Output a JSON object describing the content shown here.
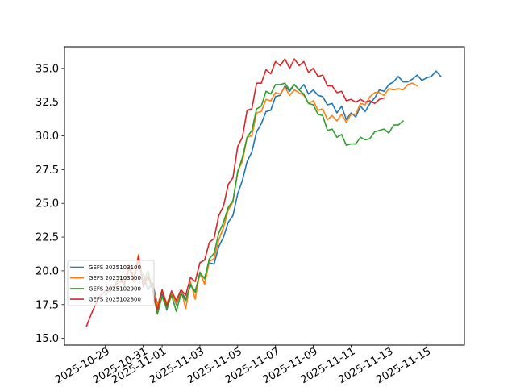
{
  "chart_data": {
    "type": "line",
    "title": "",
    "xlabel": "",
    "ylabel": "",
    "x_range": [
      "2025-10-26T20:00",
      "2025-11-17T00:00"
    ],
    "ylim": [
      14.5,
      36.6
    ],
    "grid": false,
    "legend_position": "lower-left",
    "x_ticks": [
      "2025-10-29",
      "2025-10-31",
      "2025-11-01",
      "2025-11-03",
      "2025-11-05",
      "2025-11-07",
      "2025-11-09",
      "2025-11-11",
      "2025-11-13",
      "2025-11-15"
    ],
    "y_ticks": [
      "15.0",
      "17.5",
      "20.0",
      "22.5",
      "25.0",
      "27.5",
      "30.0",
      "32.5",
      "35.0"
    ],
    "series": [
      {
        "name": "GEFS 2025103100",
        "color": "#1f77b4",
        "points": [
          [
            "2025-10-31T00:00",
            19.8
          ],
          [
            "2025-10-31T06:00",
            18.6
          ],
          [
            "2025-10-31T12:00",
            19.1
          ],
          [
            "2025-10-31T18:00",
            17.5
          ],
          [
            "2025-11-01T00:00",
            18.3
          ],
          [
            "2025-11-01T06:00",
            17.1
          ],
          [
            "2025-11-01T12:00",
            18.5
          ],
          [
            "2025-11-01T18:00",
            17.5
          ],
          [
            "2025-11-02T00:00",
            18.5
          ],
          [
            "2025-11-02T06:00",
            17.9
          ],
          [
            "2025-11-02T12:00",
            18.9
          ],
          [
            "2025-11-02T18:00",
            18.5
          ],
          [
            "2025-11-03T00:00",
            19.7
          ],
          [
            "2025-11-03T06:00",
            19.5
          ],
          [
            "2025-11-03T12:00",
            20.6
          ],
          [
            "2025-11-03T18:00",
            20.5
          ],
          [
            "2025-11-04T00:00",
            21.8
          ],
          [
            "2025-11-04T06:00",
            22.5
          ],
          [
            "2025-11-04T12:00",
            23.6
          ],
          [
            "2025-11-04T18:00",
            24.1
          ],
          [
            "2025-11-05T00:00",
            25.7
          ],
          [
            "2025-11-05T06:00",
            26.7
          ],
          [
            "2025-11-05T12:00",
            28.1
          ],
          [
            "2025-11-05T18:00",
            28.8
          ],
          [
            "2025-11-06T00:00",
            30.3
          ],
          [
            "2025-11-06T06:00",
            30.9
          ],
          [
            "2025-11-06T12:00",
            31.8
          ],
          [
            "2025-11-06T18:00",
            31.9
          ],
          [
            "2025-11-07T00:00",
            32.9
          ],
          [
            "2025-11-07T06:00",
            33.0
          ],
          [
            "2025-11-07T12:00",
            33.7
          ],
          [
            "2025-11-07T18:00",
            33.3
          ],
          [
            "2025-11-08T00:00",
            33.8
          ],
          [
            "2025-11-08T06:00",
            33.4
          ],
          [
            "2025-11-08T12:00",
            33.8
          ],
          [
            "2025-11-08T18:00",
            33.1
          ],
          [
            "2025-11-09T00:00",
            33.4
          ],
          [
            "2025-11-09T06:00",
            33.0
          ],
          [
            "2025-11-09T12:00",
            32.9
          ],
          [
            "2025-11-09T18:00",
            32.3
          ],
          [
            "2025-11-10T00:00",
            32.4
          ],
          [
            "2025-11-10T06:00",
            31.7
          ],
          [
            "2025-11-10T12:00",
            32.2
          ],
          [
            "2025-11-10T18:00",
            31.2
          ],
          [
            "2025-11-11T00:00",
            31.7
          ],
          [
            "2025-11-11T06:00",
            31.4
          ],
          [
            "2025-11-11T12:00",
            32.2
          ],
          [
            "2025-11-11T18:00",
            31.8
          ],
          [
            "2025-11-12T00:00",
            32.4
          ],
          [
            "2025-11-12T06:00",
            32.8
          ],
          [
            "2025-11-12T12:00",
            33.4
          ],
          [
            "2025-11-12T18:00",
            33.3
          ],
          [
            "2025-11-13T00:00",
            33.8
          ],
          [
            "2025-11-13T06:00",
            34.0
          ],
          [
            "2025-11-13T12:00",
            34.4
          ],
          [
            "2025-11-13T18:00",
            34.0
          ],
          [
            "2025-11-14T00:00",
            34.0
          ],
          [
            "2025-11-14T06:00",
            34.2
          ],
          [
            "2025-11-14T12:00",
            34.5
          ],
          [
            "2025-11-14T18:00",
            34.1
          ],
          [
            "2025-11-15T00:00",
            34.3
          ],
          [
            "2025-11-15T06:00",
            34.4
          ],
          [
            "2025-11-15T12:00",
            34.8
          ],
          [
            "2025-11-15T18:00",
            34.4
          ]
        ]
      },
      {
        "name": "GEFS 2025103000",
        "color": "#ff7f0e",
        "points": [
          [
            "2025-10-30T00:00",
            19.0
          ],
          [
            "2025-10-30T06:00",
            20.5
          ],
          [
            "2025-10-30T12:00",
            19.5
          ],
          [
            "2025-10-30T18:00",
            21.2
          ],
          [
            "2025-10-31T00:00",
            19.2
          ],
          [
            "2025-10-31T06:00",
            19.6
          ],
          [
            "2025-10-31T12:00",
            18.8
          ],
          [
            "2025-10-31T18:00",
            17.4
          ],
          [
            "2025-11-01T00:00",
            18.6
          ],
          [
            "2025-11-01T06:00",
            17.6
          ],
          [
            "2025-11-01T12:00",
            18.4
          ],
          [
            "2025-11-01T18:00",
            17.6
          ],
          [
            "2025-11-02T00:00",
            18.6
          ],
          [
            "2025-11-02T06:00",
            17.2
          ],
          [
            "2025-11-02T12:00",
            19.2
          ],
          [
            "2025-11-02T18:00",
            17.9
          ],
          [
            "2025-11-03T00:00",
            19.9
          ],
          [
            "2025-11-03T06:00",
            19.0
          ],
          [
            "2025-11-03T12:00",
            20.7
          ],
          [
            "2025-11-03T18:00",
            20.9
          ],
          [
            "2025-11-04T00:00",
            22.3
          ],
          [
            "2025-11-04T06:00",
            23.2
          ],
          [
            "2025-11-04T12:00",
            24.5
          ],
          [
            "2025-11-04T18:00",
            25.1
          ],
          [
            "2025-11-05T00:00",
            27.4
          ],
          [
            "2025-11-05T06:00",
            28.1
          ],
          [
            "2025-11-05T12:00",
            29.9
          ],
          [
            "2025-11-05T18:00",
            30.0
          ],
          [
            "2025-11-06T00:00",
            31.7
          ],
          [
            "2025-11-06T06:00",
            31.8
          ],
          [
            "2025-11-06T12:00",
            32.7
          ],
          [
            "2025-11-06T18:00",
            32.6
          ],
          [
            "2025-11-07T00:00",
            33.2
          ],
          [
            "2025-11-07T06:00",
            33.1
          ],
          [
            "2025-11-07T12:00",
            33.6
          ],
          [
            "2025-11-07T18:00",
            33.0
          ],
          [
            "2025-11-08T00:00",
            33.4
          ],
          [
            "2025-11-08T06:00",
            33.2
          ],
          [
            "2025-11-08T12:00",
            33.0
          ],
          [
            "2025-11-08T18:00",
            32.4
          ],
          [
            "2025-11-09T00:00",
            32.6
          ],
          [
            "2025-11-09T06:00",
            31.9
          ],
          [
            "2025-11-09T12:00",
            32.0
          ],
          [
            "2025-11-09T18:00",
            31.2
          ],
          [
            "2025-11-10T00:00",
            31.5
          ],
          [
            "2025-11-10T06:00",
            31.1
          ],
          [
            "2025-11-10T12:00",
            31.6
          ],
          [
            "2025-11-10T18:00",
            31.0
          ],
          [
            "2025-11-11T00:00",
            31.6
          ],
          [
            "2025-11-11T06:00",
            31.6
          ],
          [
            "2025-11-11T12:00",
            32.4
          ],
          [
            "2025-11-11T18:00",
            32.3
          ],
          [
            "2025-11-12T00:00",
            32.9
          ],
          [
            "2025-11-12T06:00",
            33.2
          ],
          [
            "2025-11-12T12:00",
            33.2
          ],
          [
            "2025-11-12T18:00",
            33.0
          ],
          [
            "2025-11-13T00:00",
            33.5
          ],
          [
            "2025-11-13T06:00",
            33.4
          ],
          [
            "2025-11-13T12:00",
            33.5
          ],
          [
            "2025-11-13T18:00",
            33.4
          ],
          [
            "2025-11-14T00:00",
            33.8
          ],
          [
            "2025-11-14T06:00",
            33.9
          ],
          [
            "2025-11-14T12:00",
            33.7
          ]
        ]
      },
      {
        "name": "GEFS 2025102900",
        "color": "#2ca02c",
        "points": [
          [
            "2025-10-29T00:00",
            18.2
          ],
          [
            "2025-10-29T06:00",
            18.6
          ],
          [
            "2025-10-29T12:00",
            18.9
          ],
          [
            "2025-10-29T18:00",
            19.6
          ],
          [
            "2025-10-30T00:00",
            18.9
          ],
          [
            "2025-10-30T06:00",
            20.2
          ],
          [
            "2025-10-30T12:00",
            19.4
          ],
          [
            "2025-10-30T18:00",
            20.9
          ],
          [
            "2025-10-31T00:00",
            19.1
          ],
          [
            "2025-10-31T06:00",
            20.0
          ],
          [
            "2025-10-31T12:00",
            18.6
          ],
          [
            "2025-10-31T18:00",
            16.8
          ],
          [
            "2025-11-01T00:00",
            18.1
          ],
          [
            "2025-11-01T06:00",
            17.2
          ],
          [
            "2025-11-01T12:00",
            18.2
          ],
          [
            "2025-11-01T18:00",
            17.0
          ],
          [
            "2025-11-02T00:00",
            18.3
          ],
          [
            "2025-11-02T06:00",
            17.8
          ],
          [
            "2025-11-02T12:00",
            19.0
          ],
          [
            "2025-11-02T18:00",
            18.4
          ],
          [
            "2025-11-03T00:00",
            19.9
          ],
          [
            "2025-11-03T06:00",
            19.4
          ],
          [
            "2025-11-03T12:00",
            20.9
          ],
          [
            "2025-11-03T18:00",
            21.3
          ],
          [
            "2025-11-04T00:00",
            22.8
          ],
          [
            "2025-11-04T06:00",
            23.6
          ],
          [
            "2025-11-04T12:00",
            24.7
          ],
          [
            "2025-11-04T18:00",
            25.2
          ],
          [
            "2025-11-05T00:00",
            27.3
          ],
          [
            "2025-11-05T06:00",
            28.4
          ],
          [
            "2025-11-05T12:00",
            29.9
          ],
          [
            "2025-11-05T18:00",
            30.4
          ],
          [
            "2025-11-06T00:00",
            32.0
          ],
          [
            "2025-11-06T06:00",
            32.2
          ],
          [
            "2025-11-06T12:00",
            33.3
          ],
          [
            "2025-11-06T18:00",
            33.1
          ],
          [
            "2025-11-07T00:00",
            33.8
          ],
          [
            "2025-11-07T06:00",
            33.8
          ],
          [
            "2025-11-07T12:00",
            33.9
          ],
          [
            "2025-11-07T18:00",
            33.4
          ],
          [
            "2025-11-08T00:00",
            33.8
          ],
          [
            "2025-11-08T06:00",
            33.4
          ],
          [
            "2025-11-08T12:00",
            33.1
          ],
          [
            "2025-11-08T18:00",
            32.4
          ],
          [
            "2025-11-09T00:00",
            32.3
          ],
          [
            "2025-11-09T06:00",
            31.6
          ],
          [
            "2025-11-09T12:00",
            31.5
          ],
          [
            "2025-11-09T18:00",
            30.4
          ],
          [
            "2025-11-10T00:00",
            30.5
          ],
          [
            "2025-11-10T06:00",
            29.9
          ],
          [
            "2025-11-10T12:00",
            30.1
          ],
          [
            "2025-11-10T18:00",
            29.3
          ],
          [
            "2025-11-11T00:00",
            29.4
          ],
          [
            "2025-11-11T06:00",
            29.4
          ],
          [
            "2025-11-11T12:00",
            29.9
          ],
          [
            "2025-11-11T18:00",
            29.7
          ],
          [
            "2025-11-12T00:00",
            29.8
          ],
          [
            "2025-11-12T06:00",
            30.3
          ],
          [
            "2025-11-12T12:00",
            30.4
          ],
          [
            "2025-11-12T18:00",
            30.5
          ],
          [
            "2025-11-13T00:00",
            30.2
          ],
          [
            "2025-11-13T06:00",
            30.8
          ],
          [
            "2025-11-13T12:00",
            30.8
          ],
          [
            "2025-11-13T18:00",
            31.1
          ]
        ]
      },
      {
        "name": "GEFS 2025102800",
        "color": "#d62728",
        "points": [
          [
            "2025-10-28T00:00",
            15.9
          ],
          [
            "2025-10-28T06:00",
            16.8
          ],
          [
            "2025-10-28T12:00",
            17.6
          ],
          [
            "2025-10-28T18:00",
            18.2
          ],
          [
            "2025-10-29T00:00",
            18.5
          ],
          [
            "2025-10-29T06:00",
            18.7
          ],
          [
            "2025-10-29T12:00",
            18.9
          ],
          [
            "2025-10-29T18:00",
            19.2
          ],
          [
            "2025-10-30T00:00",
            19.1
          ],
          [
            "2025-10-30T06:00",
            20.3
          ],
          [
            "2025-10-30T12:00",
            19.2
          ],
          [
            "2025-10-30T18:00",
            21.1
          ],
          [
            "2025-10-31T00:00",
            18.8
          ],
          [
            "2025-10-31T06:00",
            19.6
          ],
          [
            "2025-10-31T12:00",
            18.6
          ],
          [
            "2025-10-31T18:00",
            17.1
          ],
          [
            "2025-11-01T00:00",
            18.6
          ],
          [
            "2025-11-01T06:00",
            17.4
          ],
          [
            "2025-11-01T12:00",
            18.5
          ],
          [
            "2025-11-01T18:00",
            17.8
          ],
          [
            "2025-11-02T00:00",
            18.6
          ],
          [
            "2025-11-02T06:00",
            18.2
          ],
          [
            "2025-11-02T12:00",
            19.5
          ],
          [
            "2025-11-02T18:00",
            19.2
          ],
          [
            "2025-11-03T00:00",
            20.6
          ],
          [
            "2025-11-03T06:00",
            20.8
          ],
          [
            "2025-11-03T12:00",
            22.1
          ],
          [
            "2025-11-03T18:00",
            22.4
          ],
          [
            "2025-11-04T00:00",
            24.1
          ],
          [
            "2025-11-04T06:00",
            24.8
          ],
          [
            "2025-11-04T12:00",
            26.4
          ],
          [
            "2025-11-04T18:00",
            26.9
          ],
          [
            "2025-11-05T00:00",
            29.2
          ],
          [
            "2025-11-05T06:00",
            29.9
          ],
          [
            "2025-11-05T12:00",
            31.9
          ],
          [
            "2025-11-05T18:00",
            32.0
          ],
          [
            "2025-11-06T00:00",
            33.9
          ],
          [
            "2025-11-06T06:00",
            33.9
          ],
          [
            "2025-11-06T12:00",
            34.9
          ],
          [
            "2025-11-06T18:00",
            34.6
          ],
          [
            "2025-11-07T00:00",
            35.5
          ],
          [
            "2025-11-07T06:00",
            35.2
          ],
          [
            "2025-11-07T12:00",
            35.7
          ],
          [
            "2025-11-07T18:00",
            35.0
          ],
          [
            "2025-11-08T00:00",
            35.7
          ],
          [
            "2025-11-08T06:00",
            35.2
          ],
          [
            "2025-11-08T12:00",
            35.5
          ],
          [
            "2025-11-08T18:00",
            34.7
          ],
          [
            "2025-11-09T00:00",
            35.0
          ],
          [
            "2025-11-09T06:00",
            34.4
          ],
          [
            "2025-11-09T12:00",
            34.5
          ],
          [
            "2025-11-09T18:00",
            33.7
          ],
          [
            "2025-11-10T00:00",
            33.7
          ],
          [
            "2025-11-10T06:00",
            33.2
          ],
          [
            "2025-11-10T12:00",
            33.3
          ],
          [
            "2025-11-10T18:00",
            32.6
          ],
          [
            "2025-11-11T00:00",
            32.7
          ],
          [
            "2025-11-11T06:00",
            32.5
          ],
          [
            "2025-11-11T12:00",
            32.7
          ],
          [
            "2025-11-11T18:00",
            32.5
          ],
          [
            "2025-11-12T00:00",
            32.6
          ],
          [
            "2025-11-12T06:00",
            32.4
          ],
          [
            "2025-11-12T12:00",
            32.7
          ],
          [
            "2025-11-12T18:00",
            32.8
          ]
        ]
      }
    ]
  }
}
